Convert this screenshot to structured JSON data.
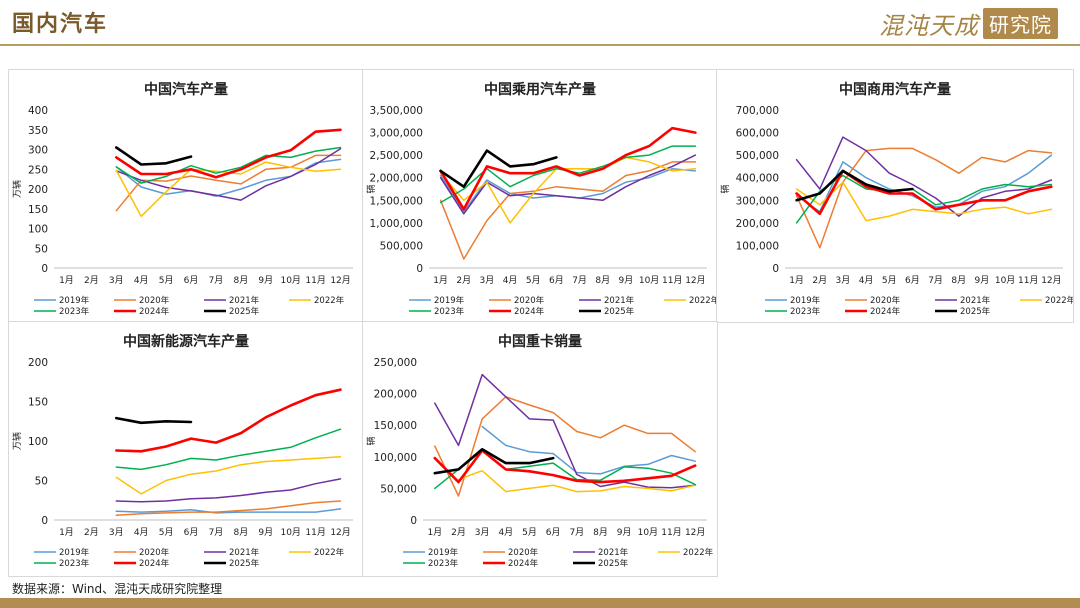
{
  "header": {
    "title": "国内汽车",
    "brand_name": "混沌天成",
    "brand_seal": "研究院"
  },
  "footer": {
    "source": "数据来源：Wind、混沌天成研究院整理"
  },
  "series_colors": {
    "2019年": "#5b9bd5",
    "2020年": "#ed7d31",
    "2021年": "#7030a0",
    "2022年": "#ffc000",
    "2023年": "#00b050",
    "2024年": "#ff0000",
    "2025年": "#000000"
  },
  "chart_data": [
    {
      "type": "line",
      "title": "中国汽车产量",
      "ylabel": "万辆",
      "ylim": [
        0,
        400
      ],
      "yticks": [
        0,
        50,
        100,
        150,
        200,
        250,
        300,
        350,
        400
      ],
      "ytick_labels": [
        "0",
        "50",
        "100",
        "150",
        "200",
        "250",
        "300",
        "350",
        "400"
      ],
      "categories": [
        "1月",
        "2月",
        "3月",
        "4月",
        "5月",
        "6月",
        "7月",
        "8月",
        "9月",
        "10月",
        "11月",
        "12月"
      ],
      "legend_position": "bottom",
      "series": [
        {
          "name": "2019年",
          "values": [
            null,
            null,
            256,
            205,
            187,
            196,
            182,
            200,
            222,
            232,
            266,
            275
          ]
        },
        {
          "name": "2020年",
          "values": [
            null,
            null,
            145,
            222,
            220,
            233,
            222,
            213,
            250,
            255,
            285,
            285
          ]
        },
        {
          "name": "2021年",
          "values": [
            null,
            null,
            246,
            222,
            204,
            195,
            184,
            172,
            208,
            232,
            262,
            302
          ]
        },
        {
          "name": "2022年",
          "values": [
            null,
            null,
            247,
            131,
            193,
            250,
            245,
            238,
            268,
            255,
            245,
            250
          ]
        },
        {
          "name": "2023年",
          "values": [
            null,
            null,
            256,
            215,
            232,
            259,
            240,
            255,
            285,
            280,
            296,
            305
          ]
        },
        {
          "name": "2024年",
          "values": [
            null,
            null,
            280,
            238,
            238,
            250,
            230,
            250,
            280,
            298,
            345,
            350
          ]
        },
        {
          "name": "2025年",
          "values": [
            null,
            null,
            305,
            262,
            265,
            282,
            null,
            null,
            null,
            null,
            null,
            null
          ]
        }
      ]
    },
    {
      "type": "line",
      "title": "中国乘用汽车产量",
      "ylabel": "辆",
      "ylim": [
        0,
        3500000
      ],
      "yticks": [
        0,
        500000,
        1000000,
        1500000,
        2000000,
        2500000,
        3000000,
        3500000
      ],
      "ytick_labels": [
        "0",
        "500,000",
        "1,000,000",
        "1,500,000",
        "2,000,000",
        "2,500,000",
        "3,000,000",
        "3,500,000"
      ],
      "categories": [
        "1月",
        "2月",
        "3月",
        "4月",
        "5月",
        "6月",
        "7月",
        "8月",
        "9月",
        "10月",
        "11月",
        "12月"
      ],
      "legend_position": "bottom",
      "series": [
        {
          "name": "2019年",
          "values": [
            2050000,
            1250000,
            1950000,
            1650000,
            1550000,
            1600000,
            1550000,
            1650000,
            1900000,
            2000000,
            2200000,
            2150000
          ]
        },
        {
          "name": "2020年",
          "values": [
            1500000,
            200000,
            1050000,
            1650000,
            1700000,
            1800000,
            1750000,
            1700000,
            2050000,
            2150000,
            2350000,
            2350000
          ]
        },
        {
          "name": "2021年",
          "values": [
            2000000,
            1200000,
            1900000,
            1600000,
            1650000,
            1600000,
            1550000,
            1500000,
            1800000,
            2050000,
            2250000,
            2500000
          ]
        },
        {
          "name": "2022年",
          "values": [
            2100000,
            1500000,
            1900000,
            1000000,
            1650000,
            2200000,
            2200000,
            2200000,
            2450000,
            2350000,
            2150000,
            2200000
          ]
        },
        {
          "name": "2023年",
          "values": [
            1450000,
            1750000,
            2200000,
            1800000,
            2050000,
            2200000,
            2100000,
            2250000,
            2450000,
            2500000,
            2700000,
            2700000
          ]
        },
        {
          "name": "2024年",
          "values": [
            2150000,
            1300000,
            2250000,
            2100000,
            2100000,
            2250000,
            2050000,
            2200000,
            2500000,
            2700000,
            3100000,
            3000000
          ]
        },
        {
          "name": "2025年",
          "values": [
            2150000,
            1800000,
            2600000,
            2250000,
            2300000,
            2450000,
            null,
            null,
            null,
            null,
            null,
            null
          ]
        }
      ]
    },
    {
      "type": "line",
      "title": "中国商用汽车产量",
      "ylabel": "辆",
      "ylim": [
        0,
        700000
      ],
      "yticks": [
        0,
        100000,
        200000,
        300000,
        400000,
        500000,
        600000,
        700000
      ],
      "ytick_labels": [
        "0",
        "100,000",
        "200,000",
        "300,000",
        "400,000",
        "500,000",
        "600,000",
        "700,000"
      ],
      "categories": [
        "1月",
        "2月",
        "3月",
        "4月",
        "5月",
        "6月",
        "7月",
        "8月",
        "9月",
        "10月",
        "11月",
        "12月"
      ],
      "legend_position": "bottom",
      "series": [
        {
          "name": "2019年",
          "values": [
            320000,
            250000,
            470000,
            400000,
            350000,
            320000,
            270000,
            280000,
            340000,
            360000,
            420000,
            500000
          ]
        },
        {
          "name": "2020年",
          "values": [
            320000,
            90000,
            380000,
            520000,
            530000,
            530000,
            480000,
            420000,
            490000,
            470000,
            520000,
            510000
          ]
        },
        {
          "name": "2021年",
          "values": [
            480000,
            350000,
            580000,
            520000,
            420000,
            370000,
            310000,
            230000,
            310000,
            340000,
            350000,
            390000
          ]
        },
        {
          "name": "2022年",
          "values": [
            350000,
            280000,
            380000,
            210000,
            230000,
            260000,
            250000,
            240000,
            260000,
            270000,
            240000,
            260000
          ]
        },
        {
          "name": "2023年",
          "values": [
            200000,
            340000,
            410000,
            350000,
            340000,
            350000,
            280000,
            300000,
            350000,
            370000,
            360000,
            370000
          ]
        },
        {
          "name": "2024年",
          "values": [
            330000,
            240000,
            430000,
            360000,
            330000,
            330000,
            260000,
            280000,
            300000,
            300000,
            340000,
            360000
          ]
        },
        {
          "name": "2025年",
          "values": [
            300000,
            330000,
            430000,
            370000,
            340000,
            350000,
            null,
            null,
            null,
            null,
            null,
            null
          ]
        }
      ]
    },
    {
      "type": "line",
      "title": "中国新能源汽车产量",
      "ylabel": "万辆",
      "ylim": [
        0,
        200
      ],
      "yticks": [
        0,
        50,
        100,
        150,
        200
      ],
      "ytick_labels": [
        "0",
        "50",
        "100",
        "150",
        "200"
      ],
      "categories": [
        "1月",
        "2月",
        "3月",
        "4月",
        "5月",
        "6月",
        "7月",
        "8月",
        "9月",
        "10月",
        "11月",
        "12月"
      ],
      "legend_position": "bottom",
      "series": [
        {
          "name": "2019年",
          "values": [
            null,
            null,
            11,
            10,
            11,
            13,
            9,
            10,
            10,
            10,
            10,
            14
          ]
        },
        {
          "name": "2020年",
          "values": [
            null,
            null,
            6,
            8,
            9,
            10,
            10,
            12,
            14,
            18,
            22,
            24
          ]
        },
        {
          "name": "2021年",
          "values": [
            null,
            null,
            24,
            23,
            24,
            27,
            28,
            31,
            35,
            38,
            46,
            52
          ]
        },
        {
          "name": "2022年",
          "values": [
            null,
            null,
            54,
            33,
            50,
            58,
            62,
            70,
            74,
            76,
            78,
            80
          ]
        },
        {
          "name": "2023年",
          "values": [
            null,
            null,
            67,
            64,
            70,
            78,
            76,
            82,
            87,
            92,
            104,
            115
          ]
        },
        {
          "name": "2024年",
          "values": [
            null,
            null,
            88,
            87,
            93,
            103,
            98,
            110,
            130,
            145,
            158,
            165
          ]
        },
        {
          "name": "2025年",
          "values": [
            null,
            null,
            129,
            123,
            125,
            124,
            null,
            null,
            null,
            null,
            null,
            null
          ]
        }
      ]
    },
    {
      "type": "line",
      "title": "中国重卡销量",
      "ylabel": "辆",
      "ylim": [
        0,
        250000
      ],
      "yticks": [
        0,
        50000,
        100000,
        150000,
        200000,
        250000
      ],
      "ytick_labels": [
        "0",
        "50,000",
        "100,000",
        "150,000",
        "200,000",
        "250,000"
      ],
      "categories": [
        "1月",
        "2月",
        "3月",
        "4月",
        "5月",
        "6月",
        "7月",
        "8月",
        "9月",
        "10月",
        "11月",
        "12月"
      ],
      "legend_position": "bottom",
      "series": [
        {
          "name": "2019年",
          "values": [
            null,
            null,
            148000,
            118000,
            108000,
            105000,
            75000,
            73000,
            85000,
            88000,
            102000,
            93000
          ]
        },
        {
          "name": "2020年",
          "values": [
            117000,
            38000,
            160000,
            195000,
            182000,
            170000,
            140000,
            130000,
            150000,
            137000,
            137000,
            108000
          ]
        },
        {
          "name": "2021年",
          "values": [
            185000,
            118000,
            230000,
            195000,
            160000,
            158000,
            72000,
            53000,
            60000,
            52000,
            51000,
            55000
          ]
        },
        {
          "name": "2022年",
          "values": [
            null,
            64000,
            78000,
            45000,
            50000,
            55000,
            45000,
            46000,
            53000,
            50000,
            46000,
            55000
          ]
        },
        {
          "name": "2023年",
          "values": [
            50000,
            80000,
            110000,
            80000,
            85000,
            90000,
            64000,
            63000,
            84000,
            82000,
            74000,
            56000
          ]
        },
        {
          "name": "2024年",
          "values": [
            98000,
            60000,
            110000,
            80000,
            77000,
            71000,
            62000,
            60000,
            62000,
            66000,
            70000,
            86000
          ]
        },
        {
          "name": "2025年",
          "values": [
            74000,
            80000,
            112000,
            90000,
            90000,
            98000,
            null,
            null,
            null,
            null,
            null,
            null
          ]
        }
      ]
    }
  ]
}
